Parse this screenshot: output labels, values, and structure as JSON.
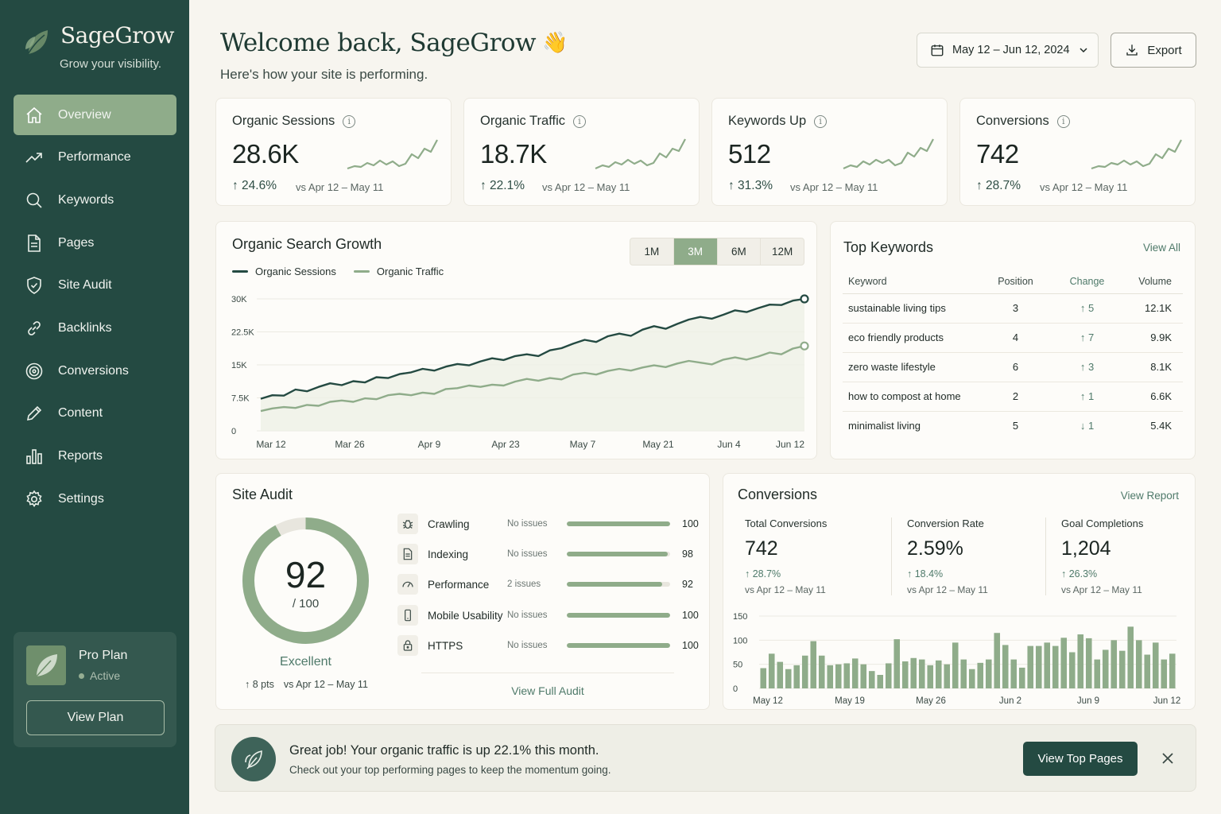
{
  "brand": {
    "name": "SageGrow",
    "tagline": "Grow your visibility."
  },
  "nav": [
    {
      "label": "Overview",
      "icon": "home-icon",
      "active": true
    },
    {
      "label": "Performance",
      "icon": "trend-icon"
    },
    {
      "label": "Keywords",
      "icon": "search-icon"
    },
    {
      "label": "Pages",
      "icon": "document-icon"
    },
    {
      "label": "Site Audit",
      "icon": "shield-check-icon"
    },
    {
      "label": "Backlinks",
      "icon": "link-icon"
    },
    {
      "label": "Conversions",
      "icon": "target-icon"
    },
    {
      "label": "Content",
      "icon": "pencil-icon"
    },
    {
      "label": "Reports",
      "icon": "bar-chart-icon"
    },
    {
      "label": "Settings",
      "icon": "gear-icon"
    }
  ],
  "plan": {
    "name": "Pro Plan",
    "status": "Active",
    "button": "View Plan"
  },
  "header": {
    "welcome": "Welcome back, SageGrow",
    "wave": "👋",
    "subtitle": "Here's how your site is performing.",
    "date_range": "May 12 – Jun 12, 2024",
    "export_label": "Export"
  },
  "kpis": [
    {
      "label": "Organic Sessions",
      "value": "28.6K",
      "delta": "↑ 24.6%",
      "compare": "vs Apr 12 – May 11"
    },
    {
      "label": "Organic Traffic",
      "value": "18.7K",
      "delta": "↑ 22.1%",
      "compare": "vs Apr 12 – May 11"
    },
    {
      "label": "Keywords Up",
      "value": "512",
      "delta": "↑ 31.3%",
      "compare": "vs Apr 12 – May 11"
    },
    {
      "label": "Conversions",
      "value": "742",
      "delta": "↑ 28.7%",
      "compare": "vs Apr 12 – May 11"
    }
  ],
  "growth": {
    "title": "Organic Search Growth",
    "ranges": [
      "1M",
      "3M",
      "6M",
      "12M"
    ],
    "active_range": "3M"
  },
  "chart_data": [
    {
      "type": "line",
      "title": "Organic Search Growth",
      "x_ticks": [
        "Mar 12",
        "Mar 26",
        "Apr 9",
        "Apr 23",
        "May 7",
        "May 21",
        "Jun 4",
        "Jun 12"
      ],
      "y_ticks": [
        "0",
        "7.5K",
        "15K",
        "22.5K",
        "30K"
      ],
      "ylim": [
        0,
        30000
      ],
      "grid": true,
      "legend": "top-left",
      "series": [
        {
          "name": "Organic Sessions",
          "color": "#244a42",
          "values": [
            7300,
            8100,
            8000,
            9400,
            9000,
            10000,
            10800,
            10400,
            11300,
            11000,
            12200,
            12000,
            12900,
            13300,
            14100,
            13700,
            14600,
            15200,
            14900,
            15800,
            16500,
            16100,
            17000,
            17400,
            17000,
            18300,
            18800,
            19800,
            20700,
            20200,
            21500,
            22100,
            21600,
            23000,
            23800,
            23200,
            24300,
            25300,
            25900,
            25500,
            26400,
            27400,
            27000,
            27900,
            28700,
            28600,
            29600,
            30000
          ]
        },
        {
          "name": "Organic Traffic",
          "color": "#8fac8a",
          "values": [
            4500,
            5100,
            5400,
            5200,
            5900,
            5700,
            6600,
            6900,
            6600,
            7400,
            7200,
            8100,
            8400,
            8100,
            8700,
            8400,
            9500,
            9700,
            10300,
            10000,
            10500,
            10300,
            11200,
            11800,
            11400,
            12000,
            11700,
            12800,
            13200,
            12800,
            13600,
            14100,
            13700,
            14400,
            14900,
            14500,
            15300,
            15900,
            15500,
            15100,
            16200,
            16700,
            16200,
            16900,
            17800,
            17400,
            18700,
            19300
          ]
        }
      ]
    },
    {
      "type": "bar",
      "title": "Conversions",
      "x_ticks": [
        "May 12",
        "May 19",
        "May 26",
        "Jun 2",
        "Jun 9",
        "Jun 12"
      ],
      "y_ticks": [
        "0",
        "50",
        "100",
        "150"
      ],
      "ylim": [
        0,
        150
      ],
      "values": [
        42,
        72,
        55,
        40,
        48,
        68,
        98,
        68,
        48,
        50,
        52,
        62,
        50,
        36,
        28,
        52,
        102,
        56,
        63,
        60,
        48,
        58,
        50,
        95,
        60,
        40,
        53,
        60,
        115,
        90,
        60,
        43,
        88,
        88,
        95,
        88,
        105,
        75,
        112,
        104,
        60,
        80,
        100,
        78,
        128,
        100,
        70,
        95,
        60,
        72
      ]
    }
  ],
  "keywords": {
    "title": "Top Keywords",
    "view_all": "View All",
    "headers": [
      "Keyword",
      "Position",
      "Change",
      "Volume"
    ],
    "rows": [
      {
        "keyword": "sustainable living tips",
        "position": "3",
        "change": "↑ 5",
        "volume": "12.1K"
      },
      {
        "keyword": "eco friendly products",
        "position": "4",
        "change": "↑ 7",
        "volume": "9.9K"
      },
      {
        "keyword": "zero waste lifestyle",
        "position": "6",
        "change": "↑ 3",
        "volume": "8.1K"
      },
      {
        "keyword": "how to compost at home",
        "position": "2",
        "change": "↑ 1",
        "volume": "6.6K"
      },
      {
        "keyword": "minimalist living",
        "position": "5",
        "change": "↓ 1",
        "volume": "5.4K"
      }
    ]
  },
  "audit": {
    "title": "Site Audit",
    "score": "92",
    "score_fraction": 0.92,
    "score_of": "/ 100",
    "rating": "Excellent",
    "delta": "↑ 8 pts",
    "compare": "vs Apr 12 – May 11",
    "view_link": "View Full Audit",
    "items": [
      {
        "name": "Crawling",
        "status": "No issues",
        "score": "100",
        "fraction": 1.0,
        "icon": "bug-icon"
      },
      {
        "name": "Indexing",
        "status": "No issues",
        "score": "98",
        "fraction": 0.98,
        "icon": "document-icon"
      },
      {
        "name": "Performance",
        "status": "2 issues",
        "score": "92",
        "fraction": 0.92,
        "icon": "gauge-icon"
      },
      {
        "name": "Mobile Usability",
        "status": "No issues",
        "score": "100",
        "fraction": 1.0,
        "icon": "mobile-icon"
      },
      {
        "name": "HTTPS",
        "status": "No issues",
        "score": "100",
        "fraction": 1.0,
        "icon": "lock-icon"
      }
    ]
  },
  "conversions": {
    "title": "Conversions",
    "view_report": "View Report",
    "stats": [
      {
        "label": "Total Conversions",
        "value": "742",
        "delta": "↑ 28.7%",
        "compare": "vs Apr 12 – May 11"
      },
      {
        "label": "Conversion Rate",
        "value": "2.59%",
        "delta": "↑ 18.4%",
        "compare": "vs Apr 12 – May 11"
      },
      {
        "label": "Goal Completions",
        "value": "1,204",
        "delta": "↑ 26.3%",
        "compare": "vs Apr 12 – May 11"
      }
    ]
  },
  "banner": {
    "title": "Great job! Your organic traffic is up 22.1% this month.",
    "subtitle": "Check out your top performing pages to keep the momentum going.",
    "button": "View Top Pages"
  },
  "colors": {
    "sidebar": "#244a42",
    "accent": "#8fac8a",
    "dark_line": "#244a42",
    "background": "#f7f5ef"
  }
}
